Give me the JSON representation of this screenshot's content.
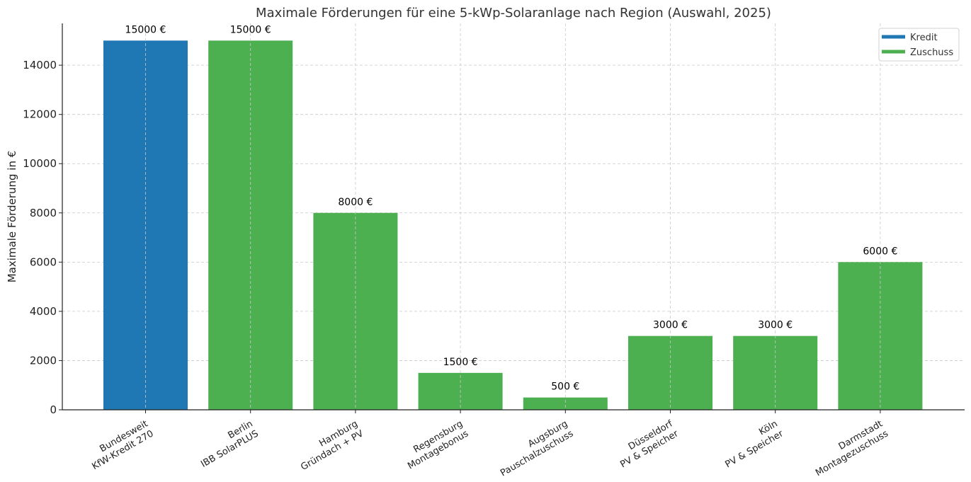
{
  "chart_data": {
    "type": "bar",
    "title": "Maximale Förderungen für eine 5-kWp-Solaranlage nach Region (Auswahl, 2025)",
    "ylabel": "Maximale Förderung in €",
    "xlabel": "",
    "ylim": [
      0,
      15700
    ],
    "yticks": [
      0,
      2000,
      4000,
      6000,
      8000,
      10000,
      12000,
      14000
    ],
    "grid": true,
    "legend_position": "top-right",
    "value_suffix": " €",
    "categories": [
      [
        "Bundesweit",
        "KfW-Kredit 270"
      ],
      [
        "Berlin",
        "IBB SolarPLUS"
      ],
      [
        "Hamburg",
        "Gründach + PV"
      ],
      [
        "Regensburg",
        "Montagebonus"
      ],
      [
        "Augsburg",
        "Pauschalzuschuss"
      ],
      [
        "Düsseldorf",
        "PV & Speicher"
      ],
      [
        "Köln",
        "PV & Speicher"
      ],
      [
        "Darmstadt",
        "Montagezuschuss"
      ]
    ],
    "values": [
      15000,
      15000,
      8000,
      1500,
      500,
      3000,
      3000,
      6000
    ],
    "types": [
      "Kredit",
      "Zuschuss",
      "Zuschuss",
      "Zuschuss",
      "Zuschuss",
      "Zuschuss",
      "Zuschuss",
      "Zuschuss"
    ],
    "legend": [
      {
        "name": "Kredit",
        "color": "#1f77b4"
      },
      {
        "name": "Zuschuss",
        "color": "#4caf50"
      }
    ]
  }
}
